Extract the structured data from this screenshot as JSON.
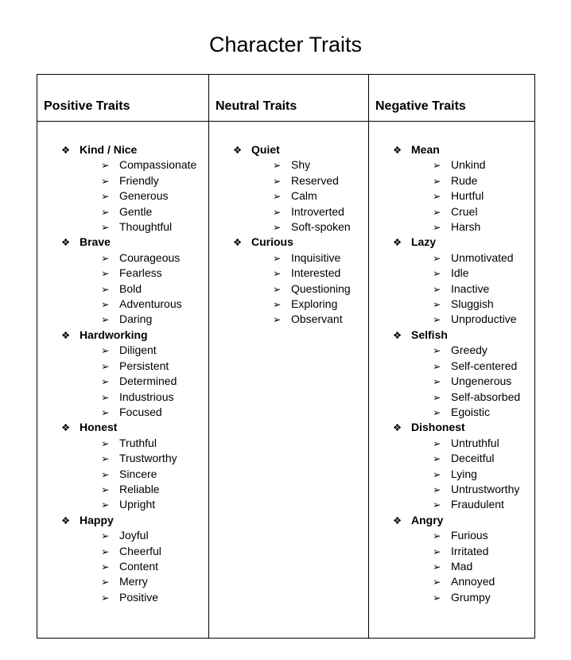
{
  "title": "Character Traits",
  "bullets": {
    "level1_icon": "❖",
    "level2_icon": "➢"
  },
  "colors": {
    "text": "#000000",
    "border": "#000000",
    "background": "#ffffff"
  },
  "columns": [
    {
      "header": "Positive Traits",
      "categories": [
        {
          "name": "Kind / Nice",
          "traits": [
            "Compassionate",
            "Friendly",
            "Generous",
            "Gentle",
            "Thoughtful"
          ]
        },
        {
          "name": "Brave",
          "traits": [
            "Courageous",
            "Fearless",
            "Bold",
            "Adventurous",
            "Daring"
          ]
        },
        {
          "name": "Hardworking",
          "traits": [
            "Diligent",
            "Persistent",
            "Determined",
            "Industrious",
            "Focused"
          ]
        },
        {
          "name": "Honest",
          "traits": [
            "Truthful",
            "Trustworthy",
            "Sincere",
            "Reliable",
            "Upright"
          ]
        },
        {
          "name": "Happy",
          "traits": [
            "Joyful",
            "Cheerful",
            "Content",
            "Merry",
            "Positive"
          ]
        }
      ]
    },
    {
      "header": "Neutral Traits",
      "categories": [
        {
          "name": "Quiet",
          "traits": [
            "Shy",
            "Reserved",
            "Calm",
            "Introverted",
            "Soft-spoken"
          ]
        },
        {
          "name": "Curious",
          "traits": [
            "Inquisitive",
            "Interested",
            "Questioning",
            "Exploring",
            "Observant"
          ]
        }
      ]
    },
    {
      "header": "Negative Traits",
      "categories": [
        {
          "name": "Mean",
          "traits": [
            "Unkind",
            "Rude",
            "Hurtful",
            "Cruel",
            "Harsh"
          ]
        },
        {
          "name": "Lazy",
          "traits": [
            "Unmotivated",
            "Idle",
            "Inactive",
            "Sluggish",
            "Unproductive"
          ]
        },
        {
          "name": "Selfish",
          "traits": [
            "Greedy",
            "Self-centered",
            "Ungenerous",
            "Self-absorbed",
            "Egoistic"
          ]
        },
        {
          "name": "Dishonest",
          "traits": [
            "Untruthful",
            "Deceitful",
            "Lying",
            "Untrustworthy",
            "Fraudulent"
          ]
        },
        {
          "name": "Angry",
          "traits": [
            "Furious",
            "Irritated",
            "Mad",
            "Annoyed",
            "Grumpy"
          ]
        }
      ]
    }
  ]
}
